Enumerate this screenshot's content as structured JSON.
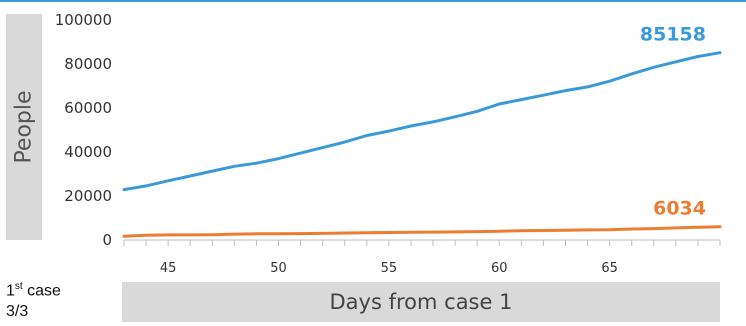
{
  "chart_data": {
    "type": "line",
    "xlabel": "Days from case 1",
    "ylabel": "People",
    "xlim": [
      43,
      70
    ],
    "ylim": [
      0,
      100000
    ],
    "y_ticks": [
      "0",
      "20000",
      "40000",
      "60000",
      "80000",
      "100000"
    ],
    "x_ticks": [
      45,
      50,
      55,
      60,
      65
    ],
    "grid": false,
    "series": [
      {
        "color": "#3a9ad9",
        "end_label": "85158",
        "x": [
          43,
          44,
          45,
          46,
          47,
          48,
          49,
          50,
          51,
          52,
          53,
          54,
          55,
          56,
          57,
          58,
          59,
          60,
          61,
          62,
          63,
          64,
          65,
          66,
          67,
          68,
          69,
          70
        ],
        "y": [
          22900,
          24600,
          26900,
          29100,
          31300,
          33500,
          34900,
          37000,
          39500,
          42000,
          44500,
          47500,
          49500,
          51800,
          53700,
          56000,
          58500,
          61800,
          63800,
          65800,
          67900,
          69600,
          72200,
          75500,
          78500,
          81000,
          83400,
          85158
        ]
      },
      {
        "color": "#ed7d31",
        "end_label": "6034",
        "x": [
          43,
          44,
          45,
          46,
          47,
          48,
          49,
          50,
          51,
          52,
          53,
          54,
          55,
          56,
          57,
          58,
          59,
          60,
          61,
          62,
          63,
          64,
          65,
          66,
          67,
          68,
          69,
          70
        ],
        "y": [
          1700,
          2200,
          2300,
          2300,
          2400,
          2700,
          2800,
          2800,
          2900,
          3000,
          3200,
          3300,
          3400,
          3500,
          3600,
          3700,
          3800,
          4000,
          4200,
          4300,
          4400,
          4600,
          4700,
          5000,
          5200,
          5500,
          5800,
          6034
        ]
      }
    ]
  },
  "footnote": {
    "line1_prefix": "1",
    "line1_sup": "st",
    "line1_suffix": " case",
    "line2": "3/3"
  }
}
